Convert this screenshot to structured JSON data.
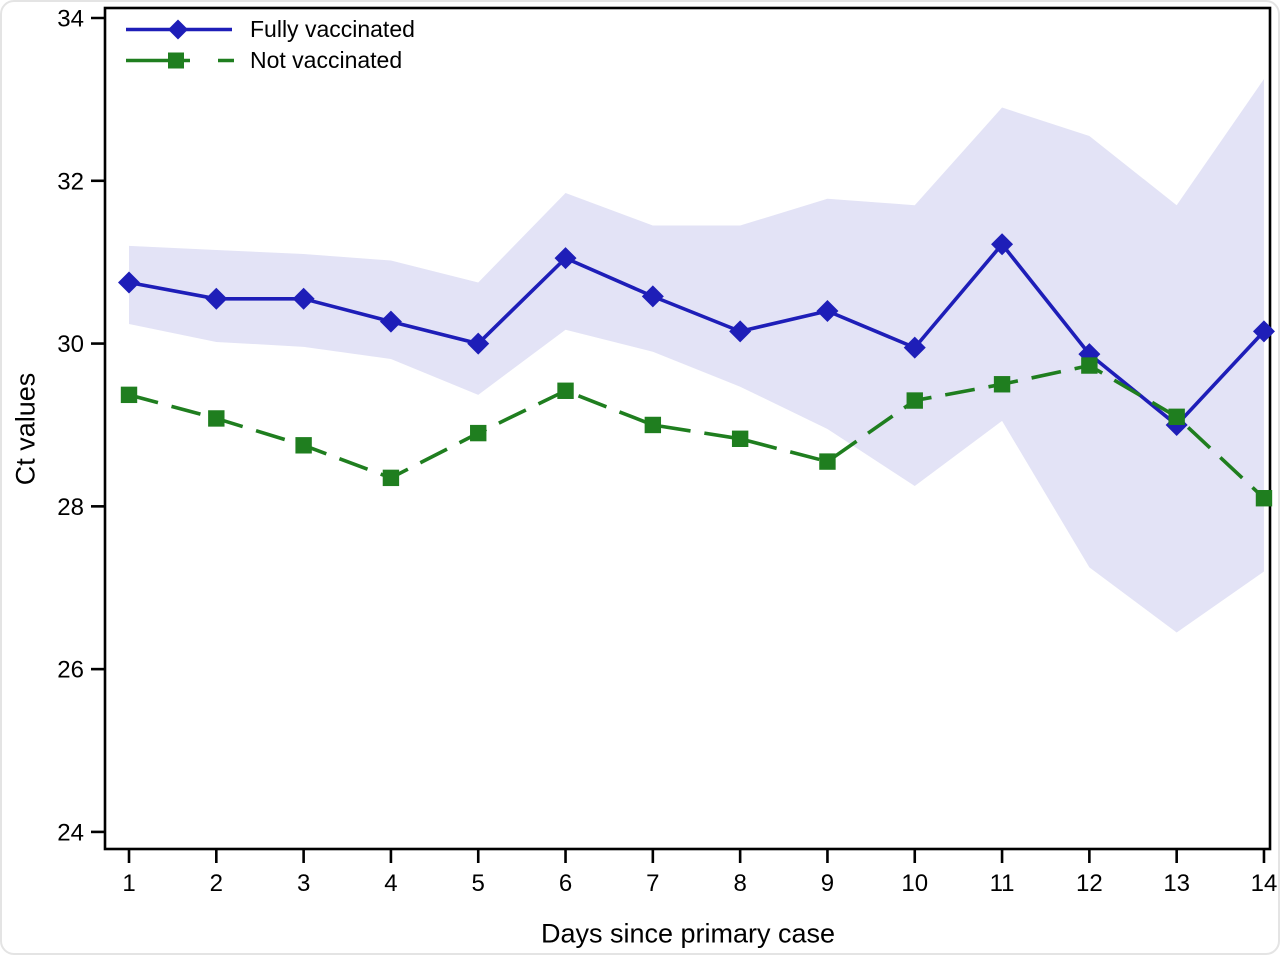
{
  "chart_data": {
    "type": "line",
    "title": "",
    "xlabel": "Days since primary case",
    "ylabel": "Ct values",
    "x": [
      1,
      2,
      3,
      4,
      5,
      6,
      7,
      8,
      9,
      10,
      11,
      12,
      13,
      14
    ],
    "x_ticks": [
      1,
      2,
      3,
      4,
      5,
      6,
      7,
      8,
      9,
      10,
      11,
      12,
      13,
      14
    ],
    "y_ticks": [
      24,
      26,
      28,
      30,
      32,
      34
    ],
    "x_range": [
      0.725,
      14.069
    ],
    "y_range": [
      23.79,
      34.123
    ],
    "grid": false,
    "legend_position": "top-left-inside",
    "axis_color": "#000000",
    "text_color": "#000000",
    "series": [
      {
        "name": "Fully vaccinated",
        "color": "#1e1eb8",
        "marker": "diamond",
        "line_style": "solid",
        "values": [
          30.75,
          30.55,
          30.55,
          30.27,
          30.0,
          31.05,
          30.58,
          30.15,
          30.4,
          29.95,
          31.22,
          29.87,
          29.0,
          30.15
        ],
        "ci_lower": [
          30.24,
          30.02,
          29.96,
          29.81,
          29.37,
          30.17,
          29.9,
          29.47,
          28.95,
          28.25,
          29.05,
          27.25,
          26.45,
          27.2
        ],
        "ci_upper": [
          31.2,
          31.15,
          31.1,
          31.02,
          30.75,
          31.85,
          31.45,
          31.45,
          31.78,
          31.7,
          32.9,
          32.55,
          31.7,
          33.25
        ],
        "ci_color": "#e3e3f6"
      },
      {
        "name": "Not vaccinated",
        "color": "#1f7e1f",
        "marker": "square",
        "line_style": "dashed",
        "values": [
          29.37,
          29.08,
          28.75,
          28.35,
          28.9,
          29.42,
          29.0,
          28.83,
          28.55,
          29.3,
          29.5,
          29.73,
          29.1,
          28.1
        ]
      }
    ]
  }
}
